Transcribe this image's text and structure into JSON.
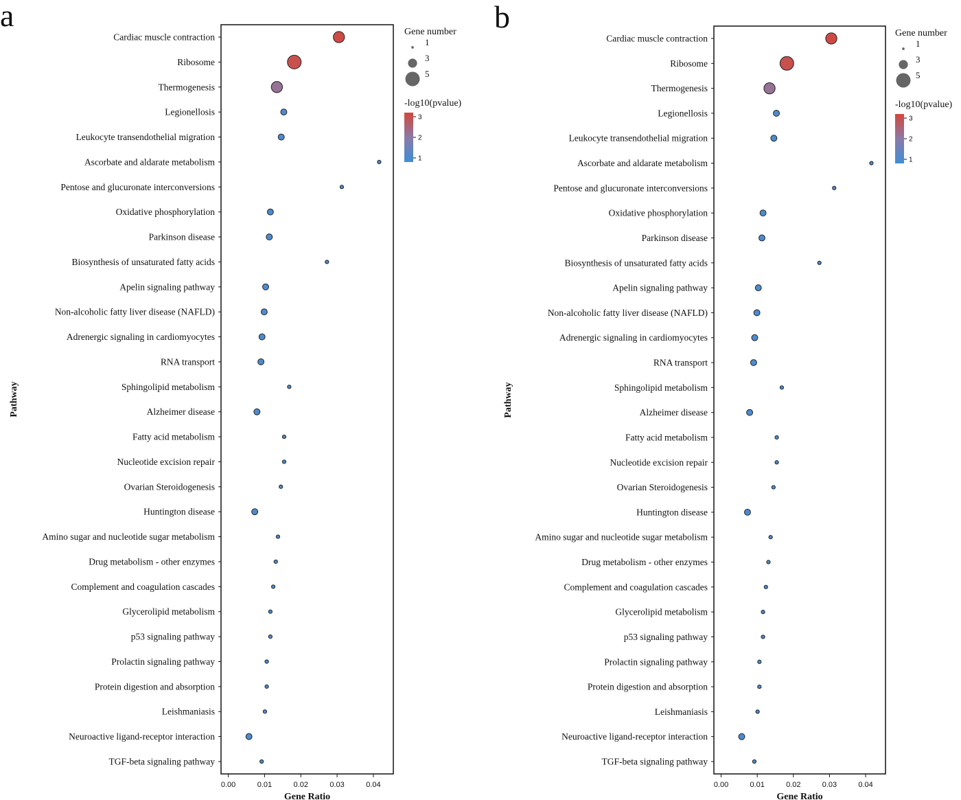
{
  "chart_data": [
    {
      "type": "scatter",
      "panel_label": "a",
      "xlabel": "Gene Ratio",
      "ylabel": "Pathway",
      "xlim": [
        -0.002,
        0.0455
      ],
      "xticks": [
        "0.00",
        "0.01",
        "0.02",
        "0.03",
        "0.04"
      ],
      "size_legend": {
        "title": "Gene number",
        "values": [
          1,
          3,
          5
        ]
      },
      "color_legend": {
        "title": "-log10(pvalue)",
        "ticks": [
          "1",
          "2",
          "3"
        ],
        "range": [
          0.8,
          3.2
        ],
        "low_color": "#3f8ed6",
        "mid_color": "#8a7aa6",
        "high_color": "#d4473b"
      },
      "categories": [
        "Cardiac muscle contraction",
        "Ribosome",
        "Thermogenesis",
        "Legionellosis",
        "Leukocyte transendothelial migration",
        "Ascorbate and aldarate metabolism",
        "Pentose and glucuronate interconversions",
        "Oxidative phosphorylation",
        "Parkinson disease",
        "Biosynthesis of unsaturated fatty acids",
        "Apelin signaling pathway",
        "Non-alcoholic fatty liver disease (NAFLD)",
        "Adrenergic signaling in cardiomyocytes",
        "RNA transport",
        "Sphingolipid metabolism",
        "Alzheimer disease",
        "Fatty acid metabolism",
        "Nucleotide excision repair",
        "Ovarian Steroidogenesis",
        "Huntington disease",
        "Amino sugar and nucleotide sugar metabolism",
        "Drug metabolism - other enzymes",
        "Complement and coagulation cascades",
        "Glycerolipid metabolism",
        "p53 signaling pathway",
        "Prolactin signaling pathway",
        "Protein digestion and absorption",
        "Leishmaniasis",
        "Neuroactive ligand-receptor interaction",
        "TGF-beta signaling pathway"
      ],
      "gene_ratio": [
        0.0305,
        0.0182,
        0.0134,
        0.0153,
        0.0146,
        0.0416,
        0.0313,
        0.0116,
        0.0113,
        0.0272,
        0.0103,
        0.0099,
        0.0093,
        0.009,
        0.0168,
        0.0079,
        0.0154,
        0.0154,
        0.0145,
        0.0073,
        0.0137,
        0.0131,
        0.0124,
        0.0116,
        0.0116,
        0.0106,
        0.0106,
        0.0101,
        0.0057,
        0.0092
      ],
      "gene_number": [
        4,
        5,
        4,
        2,
        2,
        1,
        1,
        2,
        2,
        1,
        2,
        2,
        2,
        2,
        1,
        2,
        1,
        1,
        1,
        2,
        1,
        1,
        1,
        1,
        1,
        1,
        1,
        1,
        2,
        1
      ],
      "neg_log10_pvalue": [
        3.1,
        3.0,
        2.2,
        1.1,
        1.0,
        1.0,
        1.0,
        1.0,
        1.0,
        1.0,
        1.0,
        1.0,
        1.0,
        1.0,
        1.0,
        1.0,
        1.0,
        1.0,
        1.0,
        1.0,
        1.0,
        1.0,
        1.0,
        1.0,
        1.0,
        1.0,
        1.0,
        1.0,
        1.0,
        1.0
      ]
    },
    {
      "type": "scatter",
      "panel_label": "b",
      "xlabel": "Gene Ratio",
      "ylabel": "Pathway",
      "xlim": [
        -0.002,
        0.0455
      ],
      "xticks": [
        "0.00",
        "0.01",
        "0.02",
        "0.03",
        "0.04"
      ],
      "size_legend": {
        "title": "Gene number",
        "values": [
          1,
          3,
          5
        ]
      },
      "color_legend": {
        "title": "-log10(pvalue)",
        "ticks": [
          "1",
          "2",
          "3"
        ],
        "range": [
          0.8,
          3.2
        ],
        "low_color": "#3f8ed6",
        "mid_color": "#8a7aa6",
        "high_color": "#d4473b"
      },
      "categories": [
        "Cardiac muscle contraction",
        "Ribosome",
        "Thermogenesis",
        "Legionellosis",
        "Leukocyte transendothelial migration",
        "Ascorbate and aldarate metabolism",
        "Pentose and glucuronate interconversions",
        "Oxidative phosphorylation",
        "Parkinson disease",
        "Biosynthesis of unsaturated fatty acids",
        "Apelin signaling pathway",
        "Non-alcoholic fatty liver disease (NAFLD)",
        "Adrenergic signaling in cardiomyocytes",
        "RNA transport",
        "Sphingolipid metabolism",
        "Alzheimer disease",
        "Fatty acid metabolism",
        "Nucleotide excision repair",
        "Ovarian Steroidogenesis",
        "Huntington disease",
        "Amino sugar and nucleotide sugar metabolism",
        "Drug metabolism - other enzymes",
        "Complement and coagulation cascades",
        "Glycerolipid metabolism",
        "p53 signaling pathway",
        "Prolactin signaling pathway",
        "Protein digestion and absorption",
        "Leishmaniasis",
        "Neuroactive ligand-receptor interaction",
        "TGF-beta signaling pathway"
      ],
      "gene_ratio": [
        0.0305,
        0.0182,
        0.0134,
        0.0153,
        0.0146,
        0.0416,
        0.0313,
        0.0116,
        0.0113,
        0.0272,
        0.0103,
        0.0099,
        0.0093,
        0.009,
        0.0168,
        0.0079,
        0.0154,
        0.0154,
        0.0145,
        0.0073,
        0.0137,
        0.0131,
        0.0124,
        0.0116,
        0.0116,
        0.0106,
        0.0106,
        0.0101,
        0.0057,
        0.0092
      ],
      "gene_number": [
        4,
        5,
        4,
        2,
        2,
        1,
        1,
        2,
        2,
        1,
        2,
        2,
        2,
        2,
        1,
        2,
        1,
        1,
        1,
        2,
        1,
        1,
        1,
        1,
        1,
        1,
        1,
        1,
        2,
        1
      ],
      "neg_log10_pvalue": [
        3.1,
        3.0,
        2.2,
        1.1,
        1.0,
        1.0,
        1.0,
        1.0,
        1.0,
        1.0,
        1.0,
        1.0,
        1.0,
        1.0,
        1.0,
        1.0,
        1.0,
        1.0,
        1.0,
        1.0,
        1.0,
        1.0,
        1.0,
        1.0,
        1.0,
        1.0,
        1.0,
        1.0,
        1.0,
        1.0
      ]
    }
  ]
}
